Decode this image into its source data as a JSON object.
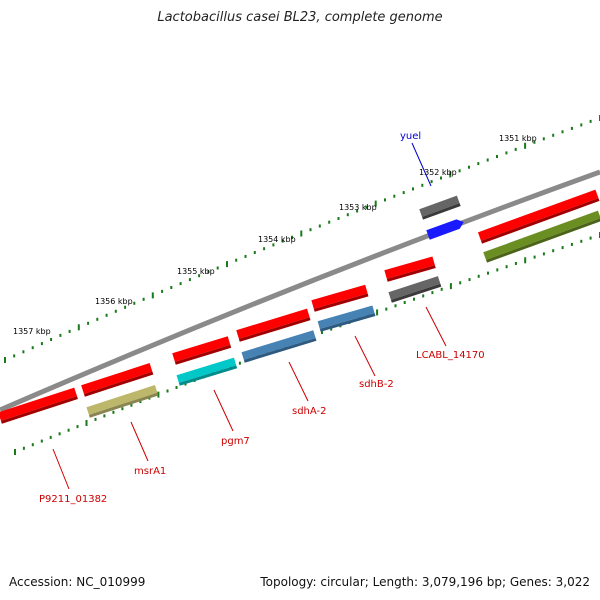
{
  "title": "Lactobacillus casei BL23, complete genome",
  "footer": {
    "accession": "Accession: NC_010999",
    "summary": "Topology: circular; Length: 3,079,196 bp; Genes: 3,022"
  },
  "scale_labels": [
    "1351 kbp",
    "1352 kbp",
    "1353 kbp",
    "1354 kbp",
    "1355 kbp",
    "1356 kbp",
    "1357 kbp"
  ],
  "gene_labels": [
    {
      "text": "yuel",
      "color": "#0000cc"
    },
    {
      "text": "LCABL_14170",
      "color": "#cc0000"
    },
    {
      "text": "sdhB-2",
      "color": "#cc0000"
    },
    {
      "text": "sdhA-2",
      "color": "#cc0000"
    },
    {
      "text": "pgm7",
      "color": "#cc0000"
    },
    {
      "text": "msrA1",
      "color": "#cc0000"
    },
    {
      "text": "P9211_01382",
      "color": "#cc0000"
    }
  ],
  "colors": {
    "backbone": "#8a8a8a",
    "cds": "#ff0000",
    "tick": "#1a7a1a",
    "gene_blue": "#1a1aff",
    "gene_gray": "#666666",
    "gene_olive": "#6b8e23",
    "gene_khaki": "#bdb76b",
    "gene_cyan": "#00c8c8",
    "gene_steel": "#4682b4"
  }
}
